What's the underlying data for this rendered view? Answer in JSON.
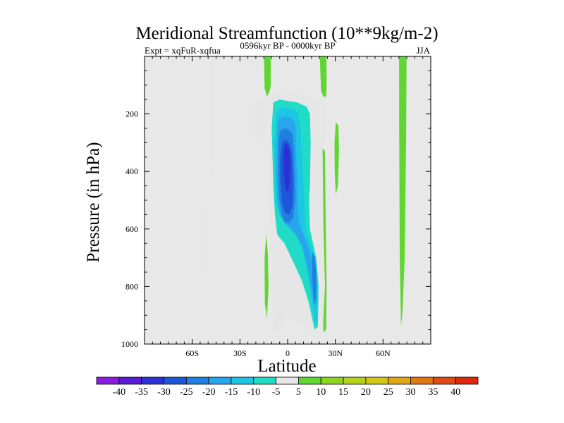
{
  "chart_data": {
    "type": "heatmap",
    "title": "Meridional Streamfunction (10**9kg/m-2)",
    "subtitle_left": "Expt = xqFuR-xqfua",
    "subtitle_center": "0596kyr BP - 0000kyr BP",
    "subtitle_right": "JJA",
    "xlabel": "Latitude",
    "ylabel": "Pressure (in hPa)",
    "xlim": [
      -90,
      90
    ],
    "ylim": [
      0,
      1000
    ],
    "y_inverted": true,
    "x_ticks": [
      {
        "value": -60,
        "label": "60S"
      },
      {
        "value": -30,
        "label": "30S"
      },
      {
        "value": 0,
        "label": "0"
      },
      {
        "value": 30,
        "label": "30N"
      },
      {
        "value": 60,
        "label": "60N"
      }
    ],
    "y_ticks": [
      {
        "value": 200,
        "label": "200"
      },
      {
        "value": 400,
        "label": "400"
      },
      {
        "value": 600,
        "label": "600"
      },
      {
        "value": 800,
        "label": "800"
      },
      {
        "value": 1000,
        "label": "1000"
      }
    ],
    "background_color": "#e8e8e8",
    "colorbar": {
      "labels": [
        "-40",
        "-35",
        "-30",
        "-25",
        "-20",
        "-15",
        "-10",
        "-5",
        "5",
        "10",
        "15",
        "20",
        "25",
        "30",
        "35",
        "40"
      ],
      "colors": [
        "#8a1ee0",
        "#5a1cd6",
        "#2c31d6",
        "#1e56d9",
        "#2080e0",
        "#28a6ec",
        "#1cc6e4",
        "#20dcc6",
        "#e6e6e6",
        "#60d630",
        "#8cd623",
        "#b4d21c",
        "#d4c814",
        "#e0a814",
        "#e07814",
        "#e04a14",
        "#dc2a0a"
      ]
    },
    "regions": [
      {
        "name": "sh-high-lat-thin-negative",
        "level": -5,
        "polygon": [
          [
            -47.2,
            0
          ],
          [
            -46.3,
            0
          ],
          [
            -46.2,
            200
          ],
          [
            -46.3,
            500
          ],
          [
            -46.4,
            850
          ],
          [
            -46.9,
            880
          ],
          [
            -47.1,
            600
          ],
          [
            -47.2,
            300
          ]
        ]
      },
      {
        "name": "sh-polar-negative-sliver",
        "level": -5,
        "polygon": [
          [
            -53.9,
            470
          ],
          [
            -53.6,
            550
          ],
          [
            -53.4,
            680
          ],
          [
            -53.8,
            790
          ],
          [
            -54.3,
            720
          ],
          [
            -54.5,
            580
          ],
          [
            -54.2,
            490
          ]
        ]
      },
      {
        "name": "upper-trop-negative-west",
        "level": -5,
        "polygon": [
          [
            -20,
            150
          ],
          [
            -14,
            145
          ],
          [
            -13,
            200
          ],
          [
            -15,
            290
          ],
          [
            -20,
            300
          ],
          [
            -21,
            200
          ]
        ]
      },
      {
        "name": "nh-subtropic-positive-upper",
        "level": 5,
        "polygon": [
          [
            30.3,
            230
          ],
          [
            31.9,
            240
          ],
          [
            32.3,
            330
          ],
          [
            31.6,
            450
          ],
          [
            30.3,
            480
          ],
          [
            29.6,
            400
          ],
          [
            29.5,
            300
          ]
        ]
      },
      {
        "name": "nh-mid-lat-positive-band",
        "level": 5,
        "polygon": [
          [
            70.1,
            0
          ],
          [
            74.8,
            0
          ],
          [
            74.5,
            300
          ],
          [
            73.6,
            700
          ],
          [
            72.3,
            880
          ],
          [
            71.3,
            940
          ],
          [
            70.5,
            700
          ],
          [
            70.2,
            300
          ]
        ]
      },
      {
        "name": "lower-trop-positive-west",
        "level": 5,
        "polygon": [
          [
            -13.5,
            620
          ],
          [
            -12.5,
            680
          ],
          [
            -12,
            800
          ],
          [
            -13,
            910
          ],
          [
            -14.3,
            860
          ],
          [
            -14.5,
            700
          ]
        ]
      },
      {
        "name": "eq-upper-positive-west",
        "level": 5,
        "polygon": [
          [
            -14.8,
            0
          ],
          [
            -10.7,
            0
          ],
          [
            -10.6,
            100
          ],
          [
            -11.3,
            120
          ],
          [
            -13,
            140
          ],
          [
            -14.5,
            110
          ]
        ]
      },
      {
        "name": "eq-upper-positive-east",
        "level": 5,
        "polygon": [
          [
            20.2,
            0
          ],
          [
            24.4,
            0
          ],
          [
            24.5,
            100
          ],
          [
            24.2,
            140
          ],
          [
            22.5,
            140
          ],
          [
            21,
            120
          ]
        ]
      },
      {
        "name": "eq-lower-positive-east",
        "level": 5,
        "polygon": [
          [
            22,
            320
          ],
          [
            23.5,
            330
          ],
          [
            24,
            600
          ],
          [
            24.5,
            800
          ],
          [
            24.2,
            950
          ],
          [
            22.5,
            960
          ],
          [
            21.5,
            800
          ],
          [
            21,
            500
          ]
        ]
      },
      {
        "name": "core-level-5",
        "level": -5,
        "polygon": [
          [
            -10,
            140
          ],
          [
            -7,
            120
          ],
          [
            -3,
            130
          ],
          [
            1,
            120
          ],
          [
            6,
            130
          ],
          [
            12,
            140
          ],
          [
            20,
            150
          ],
          [
            24,
            170
          ],
          [
            24.5,
            270
          ],
          [
            22,
            320
          ],
          [
            22.5,
            600
          ],
          [
            23.5,
            800
          ],
          [
            22,
            960
          ],
          [
            16,
            970
          ],
          [
            12,
            940
          ],
          [
            6,
            930
          ],
          [
            0,
            900
          ],
          [
            -5,
            960
          ],
          [
            -9,
            950
          ],
          [
            -10.5,
            800
          ],
          [
            -10.7,
            650
          ],
          [
            -12,
            500
          ],
          [
            -11,
            250
          ]
        ]
      },
      {
        "name": "core-level-10",
        "level": -10,
        "polygon": [
          [
            -9,
            160
          ],
          [
            -5,
            150
          ],
          [
            0,
            155
          ],
          [
            6,
            160
          ],
          [
            12,
            175
          ],
          [
            14,
            200
          ],
          [
            14.5,
            300
          ],
          [
            14,
            450
          ],
          [
            13.5,
            500
          ],
          [
            14,
            600
          ],
          [
            16,
            650
          ],
          [
            18,
            700
          ],
          [
            19.5,
            800
          ],
          [
            19,
            940
          ],
          [
            17,
            950
          ],
          [
            15,
            900
          ],
          [
            13,
            850
          ],
          [
            9,
            780
          ],
          [
            4,
            720
          ],
          [
            -2,
            650
          ],
          [
            -6.5,
            620
          ],
          [
            -8,
            550
          ],
          [
            -9,
            450
          ],
          [
            -10,
            250
          ]
        ]
      },
      {
        "name": "core-level-15",
        "level": -15,
        "polygon": [
          [
            -7,
            190
          ],
          [
            -4,
            180
          ],
          [
            0,
            178
          ],
          [
            4,
            185
          ],
          [
            6.5,
            200
          ],
          [
            8,
            250
          ],
          [
            9,
            350
          ],
          [
            10.5,
            500
          ],
          [
            11,
            600
          ],
          [
            14,
            650
          ],
          [
            16,
            680
          ],
          [
            18,
            720
          ],
          [
            19,
            850
          ],
          [
            18.5,
            930
          ],
          [
            17,
            920
          ],
          [
            15,
            840
          ],
          [
            11,
            700
          ],
          [
            8,
            620
          ],
          [
            4,
            590
          ],
          [
            0,
            580
          ],
          [
            -4,
            560
          ],
          [
            -7,
            520
          ],
          [
            -8,
            450
          ],
          [
            -8.5,
            300
          ]
        ]
      },
      {
        "name": "core-level-20",
        "level": -20,
        "polygon": [
          [
            -6,
            220
          ],
          [
            -3,
            210
          ],
          [
            0,
            210
          ],
          [
            3,
            215
          ],
          [
            5,
            240
          ],
          [
            5.5,
            350
          ],
          [
            6,
            450
          ],
          [
            6.5,
            550
          ],
          [
            8,
            590
          ],
          [
            12,
            650
          ],
          [
            15,
            700
          ],
          [
            17.5,
            720
          ],
          [
            18.5,
            800
          ],
          [
            18,
            860
          ],
          [
            16.5,
            870
          ],
          [
            15.5,
            820
          ],
          [
            13,
            750
          ],
          [
            9,
            660
          ],
          [
            5,
            620
          ],
          [
            2,
            600
          ],
          [
            -2,
            580
          ],
          [
            -5,
            550
          ],
          [
            -6.5,
            500
          ],
          [
            -7,
            400
          ],
          [
            -7,
            300
          ]
        ]
      },
      {
        "name": "core-level-25",
        "level": -25,
        "polygon": [
          [
            -5,
            260
          ],
          [
            -2,
            250
          ],
          [
            1,
            255
          ],
          [
            3,
            270
          ],
          [
            4,
            330
          ],
          [
            4.5,
            420
          ],
          [
            4.8,
            500
          ],
          [
            3.5,
            560
          ],
          [
            1,
            580
          ],
          [
            -2,
            575
          ],
          [
            -4,
            545
          ],
          [
            -5.5,
            480
          ],
          [
            -6,
            380
          ],
          [
            -5.8,
            300
          ]
        ]
      },
      {
        "name": "core-level-25-lower",
        "level": -25,
        "polygon": [
          [
            15.5,
            680
          ],
          [
            17.2,
            700
          ],
          [
            18,
            760
          ],
          [
            17.8,
            840
          ],
          [
            16.8,
            860
          ],
          [
            16,
            820
          ],
          [
            15.5,
            760
          ]
        ]
      },
      {
        "name": "core-level-30",
        "level": -30,
        "polygon": [
          [
            -3.5,
            300
          ],
          [
            -1.5,
            290
          ],
          [
            1,
            300
          ],
          [
            2.5,
            330
          ],
          [
            3.2,
            400
          ],
          [
            3.5,
            460
          ],
          [
            3,
            520
          ],
          [
            1,
            550
          ],
          [
            -1.5,
            545
          ],
          [
            -3.5,
            510
          ],
          [
            -4.5,
            440
          ],
          [
            -4.7,
            360
          ]
        ]
      },
      {
        "name": "core-level-35",
        "level": -35,
        "polygon": [
          [
            -2,
            310
          ],
          [
            -0.5,
            305
          ],
          [
            1,
            320
          ],
          [
            1.8,
            370
          ],
          [
            1.5,
            430
          ],
          [
            0.5,
            470
          ],
          [
            -1,
            465
          ],
          [
            -2,
            430
          ],
          [
            -2.5,
            380
          ],
          [
            -2.5,
            340
          ]
        ]
      }
    ]
  }
}
